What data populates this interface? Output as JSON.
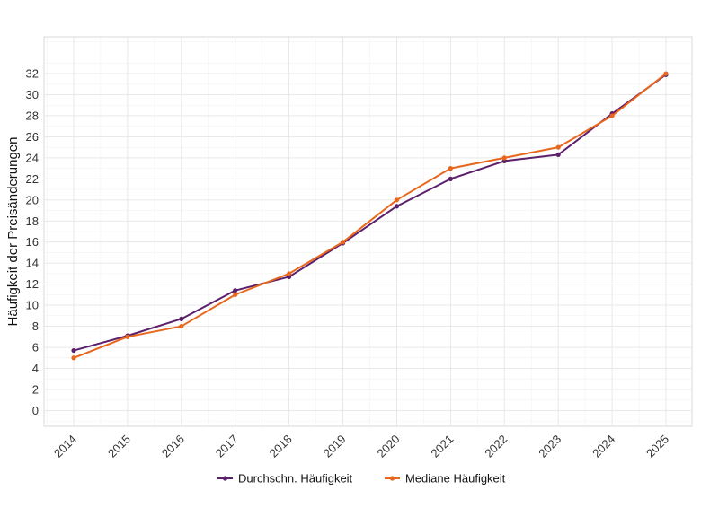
{
  "chart_data": {
    "type": "line",
    "title": "",
    "xlabel": "",
    "ylabel": "Häufigkeit der Preisänderungen",
    "categories": [
      "2014",
      "2015",
      "2016",
      "2017",
      "2018",
      "2019",
      "2020",
      "2021",
      "2022",
      "2023",
      "2024",
      "2025"
    ],
    "yticks": [
      "0",
      "2",
      "4",
      "6",
      "8",
      "10",
      "12",
      "14",
      "16",
      "18",
      "20",
      "22",
      "24",
      "26",
      "28",
      "30",
      "32"
    ],
    "ylim": [
      -1.5,
      35.5
    ],
    "grid": true,
    "legend_position": "bottom",
    "series": [
      {
        "name": "Durchschn. Häufigkeit",
        "color": "#5c1f6b",
        "values": [
          5.7,
          7.1,
          8.7,
          11.4,
          12.7,
          15.9,
          19.4,
          22.0,
          23.7,
          24.3,
          28.2,
          31.9
        ]
      },
      {
        "name": "Mediane Häufigkeit",
        "color": "#e8671d",
        "values": [
          5.0,
          7.0,
          8.0,
          11.0,
          13.0,
          16.0,
          20.0,
          23.0,
          24.0,
          25.0,
          28.0,
          32.0
        ]
      }
    ]
  }
}
